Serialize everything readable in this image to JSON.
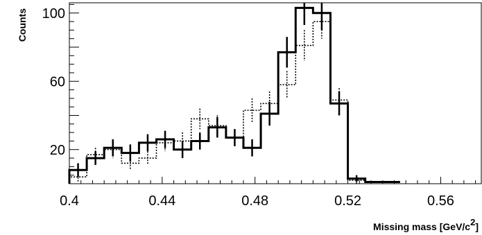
{
  "chart_data": {
    "type": "histogram",
    "ylabel": "Counts",
    "xlabel": "Missing mass [GeV/c",
    "xlabel_superscript": "2",
    "xlabel_suffix": "]",
    "xlim": [
      0.4,
      0.5775
    ],
    "ylim": [
      0,
      106
    ],
    "x_ticks": [
      0.4,
      0.44,
      0.48,
      0.52,
      0.56
    ],
    "x_tick_labels": [
      "0.4",
      "0.44",
      "0.48",
      "0.52",
      "0.56"
    ],
    "y_ticks": [
      20,
      60,
      100
    ],
    "y_tick_labels": [
      "20",
      "60",
      "100"
    ],
    "bin_width": 0.0075,
    "bin_edges": [
      0.4,
      0.4075,
      0.415,
      0.4225,
      0.43,
      0.4375,
      0.445,
      0.4525,
      0.46,
      0.4675,
      0.475,
      0.4825,
      0.49,
      0.4975,
      0.505,
      0.5125,
      0.52,
      0.5275,
      0.535,
      0.5425,
      0.55,
      0.5575,
      0.565,
      0.5725,
      0.5775
    ],
    "series": [
      {
        "style": "solid",
        "color": "#000000",
        "values": [
          8,
          15,
          21,
          18,
          24,
          26,
          20,
          25,
          33,
          27,
          21,
          41,
          77,
          103,
          100,
          47,
          3,
          1,
          1
        ],
        "errors": [
          4,
          4,
          5,
          5,
          5,
          5,
          5,
          5,
          6,
          5,
          5,
          7,
          9,
          10,
          10,
          7,
          2,
          1,
          1
        ]
      },
      {
        "style": "dotted",
        "color": "#000000",
        "values": [
          4,
          17,
          20,
          12,
          15,
          24,
          25,
          38,
          34,
          27,
          43,
          47,
          58,
          81,
          95,
          49,
          2,
          1,
          1
        ],
        "errors": [
          3,
          4,
          5,
          4,
          4,
          5,
          5,
          6,
          6,
          5,
          7,
          7,
          8,
          9,
          10,
          7,
          2,
          1,
          1
        ]
      }
    ]
  }
}
